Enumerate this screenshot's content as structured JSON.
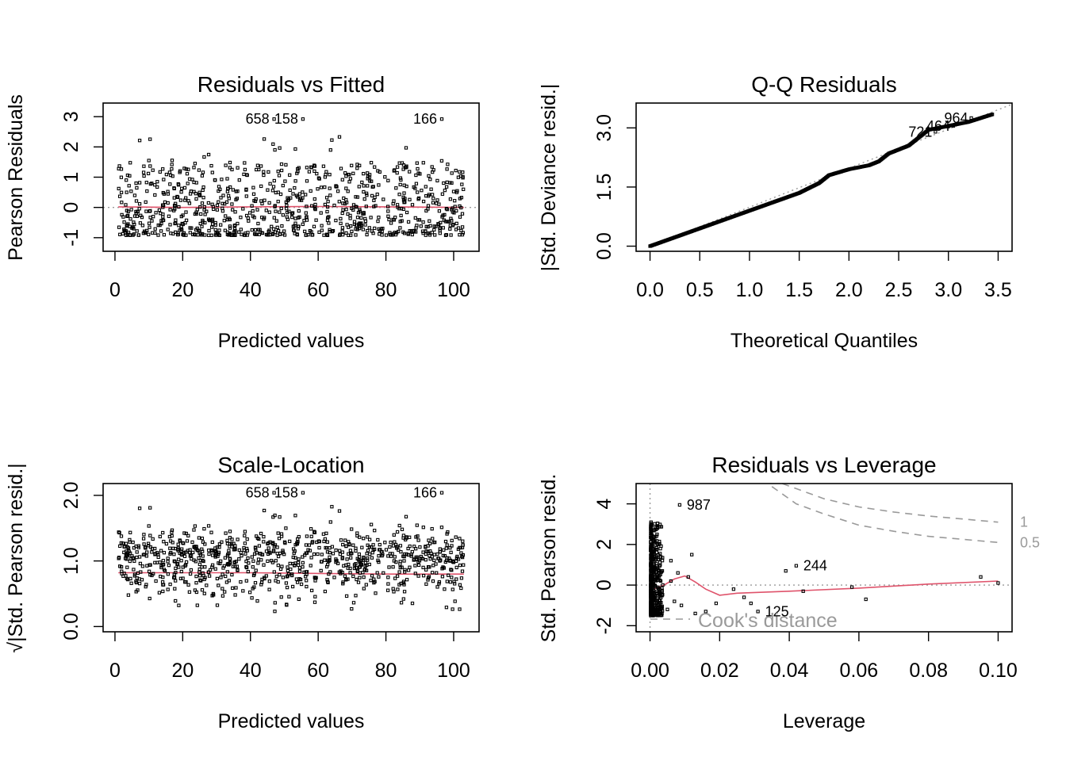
{
  "chart_data": [
    {
      "type": "scatter",
      "title": "Residuals vs Fitted",
      "xlabel": "Predicted values",
      "ylabel": "Pearson Residuals",
      "xlim": [
        -3.5,
        107.5
      ],
      "ylim": [
        -1.45,
        3.45
      ],
      "xticks": [
        0,
        20,
        40,
        60,
        80,
        100
      ],
      "yticks": [
        -1,
        0,
        1,
        2,
        3
      ],
      "ytick_labels": [
        "-1",
        "0",
        "1",
        "2",
        "3"
      ],
      "reference_line": 0,
      "smoother": [
        [
          1,
          0.02
        ],
        [
          20,
          0.0
        ],
        [
          40,
          0.02
        ],
        [
          60,
          0.03
        ],
        [
          80,
          0.02
        ],
        [
          103,
          0.0
        ]
      ],
      "labeled_points": [
        {
          "label": "658",
          "x": 47.0,
          "y": 2.92
        },
        {
          "label": "158",
          "x": 55.5,
          "y": 2.92
        },
        {
          "label": "166",
          "x": 96.5,
          "y": 2.92
        }
      ],
      "point_set": "fitted"
    },
    {
      "type": "line",
      "title": "Q-Q Residuals",
      "xlabel": "Theoretical Quantiles",
      "ylabel": "|Std. Deviance resid.|",
      "xlim": [
        -0.14,
        3.64
      ],
      "ylim": [
        -0.13,
        3.63
      ],
      "xticks": [
        0.0,
        0.5,
        1.0,
        1.5,
        2.0,
        2.5,
        3.0,
        3.5
      ],
      "xtick_labels": [
        "0.0",
        "0.5",
        "1.0",
        "1.5",
        "2.0",
        "2.5",
        "3.0",
        "3.5"
      ],
      "yticks": [
        0.0,
        1.5,
        3.0
      ],
      "ytick_labels": [
        "0.0",
        "1.5",
        "3.0"
      ],
      "qq_curve": [
        [
          0,
          0.0
        ],
        [
          0.5,
          0.45
        ],
        [
          1.0,
          0.9
        ],
        [
          1.5,
          1.35
        ],
        [
          1.7,
          1.6
        ],
        [
          1.8,
          1.8
        ],
        [
          2.0,
          1.95
        ],
        [
          2.2,
          2.05
        ],
        [
          2.3,
          2.15
        ],
        [
          2.4,
          2.35
        ],
        [
          2.6,
          2.55
        ],
        [
          2.8,
          2.95
        ],
        [
          3.0,
          3.05
        ],
        [
          3.2,
          3.15
        ],
        [
          3.45,
          3.35
        ]
      ],
      "labeled_points": [
        {
          "label": "721",
          "x": 2.87,
          "y": 2.9
        },
        {
          "label": "464",
          "x": 3.05,
          "y": 3.05
        },
        {
          "label": "964",
          "x": 3.23,
          "y": 3.25
        }
      ]
    },
    {
      "type": "scatter",
      "title": "Scale-Location",
      "xlabel": "Predicted values",
      "ylabel": "√|Std. Pearson resid.|",
      "xlim": [
        -3.5,
        107.5
      ],
      "ylim": [
        -0.08,
        2.18
      ],
      "xticks": [
        0,
        20,
        40,
        60,
        80,
        100
      ],
      "yticks": [
        0.0,
        1.0,
        2.0
      ],
      "ytick_labels": [
        "0.0",
        "1.0",
        "2.0"
      ],
      "smoother": [
        [
          1,
          0.82
        ],
        [
          20,
          0.82
        ],
        [
          40,
          0.82
        ],
        [
          60,
          0.81
        ],
        [
          80,
          0.8
        ],
        [
          103,
          0.8
        ]
      ],
      "labeled_points": [
        {
          "label": "658",
          "x": 47.0,
          "y": 2.04
        },
        {
          "label": "158",
          "x": 55.5,
          "y": 2.04
        },
        {
          "label": "166",
          "x": 96.5,
          "y": 2.04
        }
      ],
      "point_set": "scale"
    },
    {
      "type": "scatter",
      "title": "Residuals vs Leverage",
      "xlabel": "Leverage",
      "ylabel": "Std. Pearson resid.",
      "xlim": [
        -0.004,
        0.104
      ],
      "ylim": [
        -2.3,
        5.0
      ],
      "xticks": [
        0.0,
        0.02,
        0.04,
        0.06,
        0.08,
        0.1
      ],
      "xtick_labels": [
        "0.00",
        "0.02",
        "0.04",
        "0.06",
        "0.08",
        "0.10"
      ],
      "yticks": [
        -2,
        0,
        2,
        4
      ],
      "ytick_labels": [
        "-2",
        "0",
        "2",
        "4"
      ],
      "reference_line": 0,
      "smoother": [
        [
          0.001,
          -0.2
        ],
        [
          0.004,
          0.0
        ],
        [
          0.007,
          0.3
        ],
        [
          0.01,
          0.45
        ],
        [
          0.013,
          0.15
        ],
        [
          0.016,
          -0.2
        ],
        [
          0.02,
          -0.5
        ],
        [
          0.025,
          -0.4
        ],
        [
          0.04,
          -0.3
        ],
        [
          0.06,
          -0.15
        ],
        [
          0.08,
          0.05
        ],
        [
          0.1,
          0.2
        ]
      ],
      "cooks_curves": [
        {
          "label": "1",
          "points": [
            [
              0.038,
              5.0
            ],
            [
              0.05,
              4.25
            ],
            [
              0.06,
              3.85
            ],
            [
              0.07,
              3.6
            ],
            [
              0.08,
              3.4
            ],
            [
              0.09,
              3.25
            ],
            [
              0.1,
              3.1
            ]
          ]
        },
        {
          "label": "0.5",
          "points": [
            [
              0.035,
              4.85
            ],
            [
              0.042,
              4.0
            ],
            [
              0.05,
              3.5
            ],
            [
              0.06,
              2.95
            ],
            [
              0.07,
              2.65
            ],
            [
              0.08,
              2.4
            ],
            [
              0.09,
              2.25
            ],
            [
              0.1,
              2.1
            ]
          ]
        }
      ],
      "cooks_legend": "Cook's distance",
      "labeled_points": [
        {
          "label": "987",
          "x": 0.0085,
          "y": 3.95
        },
        {
          "label": "244",
          "x": 0.042,
          "y": 0.95
        },
        {
          "label": "125",
          "x": 0.031,
          "y": -1.3
        }
      ],
      "point_set": "leverage"
    }
  ]
}
